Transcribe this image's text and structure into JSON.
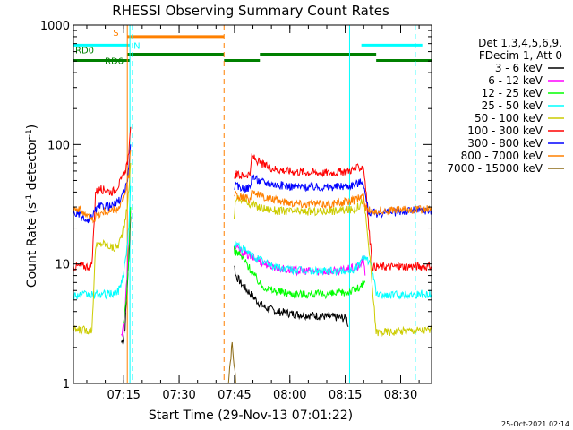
{
  "chart_data": {
    "type": "line",
    "title": "RHESSI Observing Summary Count Rates",
    "xlabel": "Start Time (29-Nov-13 07:01:22)",
    "ylabel_main": "Count Rate (s",
    "ylabel_sup1": "-1",
    "ylabel_mid": " detector",
    "ylabel_sup2": "-1",
    "ylabel_end": ")",
    "y_scale": "log",
    "ylim": [
      1,
      1000
    ],
    "xlim_minutes": [
      0,
      97
    ],
    "x_ticks": [
      {
        "label": "07:15",
        "min": 13.63
      },
      {
        "label": "07:30",
        "min": 28.63
      },
      {
        "label": "07:45",
        "min": 43.63
      },
      {
        "label": "08:00",
        "min": 58.63
      },
      {
        "label": "08:15",
        "min": 73.63
      },
      {
        "label": "08:30",
        "min": 88.63
      }
    ],
    "y_ticks": [
      {
        "label": "1",
        "value": 1
      },
      {
        "label": "10",
        "value": 10
      },
      {
        "label": "100",
        "value": 100
      },
      {
        "label": "1000",
        "value": 1000
      }
    ],
    "legend": {
      "placement": "right",
      "header": [
        "Det 1,3,4,5,6,9,",
        "FDecim 1, Att 0"
      ],
      "entries": [
        {
          "label": "3 - 6 keV",
          "color": "#000000"
        },
        {
          "label": "6 - 12 keV",
          "color": "#ff00ff"
        },
        {
          "label": "12 - 25 keV",
          "color": "#00ff00"
        },
        {
          "label": "25 - 50 keV",
          "color": "#00ffff"
        },
        {
          "label": "50 - 100 keV",
          "color": "#cccc00"
        },
        {
          "label": "100 - 300 keV",
          "color": "#ff0000"
        },
        {
          "label": "300 - 800 keV",
          "color": "#0000ff"
        },
        {
          "label": "800 - 7000 keV",
          "color": "#ff8000"
        },
        {
          "label": "7000 - 15000 keV",
          "color": "#8b6914"
        }
      ]
    },
    "series": [
      {
        "name": "3 - 6 keV",
        "color": "#000000",
        "segments": [
          [
            [
              13,
              2.2
            ],
            [
              13.5,
              2.4
            ],
            [
              14,
              3
            ],
            [
              14.5,
              6
            ],
            [
              15,
              11
            ],
            [
              15.5,
              25
            ]
          ],
          [
            [
              43.5,
              10
            ],
            [
              44,
              8
            ],
            [
              46,
              6.5
            ],
            [
              48,
              5.6
            ],
            [
              50,
              4.8
            ],
            [
              52,
              4.3
            ],
            [
              55,
              4.0
            ],
            [
              60,
              3.8
            ],
            [
              65,
              3.7
            ],
            [
              70,
              3.6
            ],
            [
              74,
              3.5
            ],
            [
              74.5,
              3.0
            ]
          ]
        ]
      },
      {
        "name": "6 - 12 keV",
        "color": "#ff00ff",
        "segments": [
          [
            [
              13,
              2.5
            ],
            [
              14,
              4
            ],
            [
              14.5,
              8
            ],
            [
              15,
              14
            ],
            [
              15.5,
              28
            ]
          ],
          [
            [
              43.5,
              14
            ],
            [
              45,
              13
            ],
            [
              48,
              11.5
            ],
            [
              52,
              10
            ],
            [
              56,
              9.2
            ],
            [
              60,
              8.8
            ],
            [
              66,
              8.7
            ],
            [
              72,
              8.7
            ],
            [
              77.5,
              9.5
            ],
            [
              78.5,
              11
            ],
            [
              79,
              8
            ]
          ]
        ]
      },
      {
        "name": "12 - 25 keV",
        "color": "#00ff00",
        "segments": [
          [
            [
              13.5,
              3
            ],
            [
              14.5,
              6
            ],
            [
              15,
              12
            ],
            [
              15.5,
              30
            ]
          ],
          [
            [
              43.5,
              13
            ],
            [
              45,
              12
            ],
            [
              47,
              10
            ],
            [
              49,
              8
            ],
            [
              51,
              6.6
            ],
            [
              54,
              6.0
            ],
            [
              58,
              5.7
            ],
            [
              62,
              5.6
            ],
            [
              66,
              5.6
            ],
            [
              70,
              5.6
            ],
            [
              74,
              5.8
            ],
            [
              77.5,
              6.3
            ],
            [
              79,
              7
            ]
          ]
        ]
      },
      {
        "name": "25 - 50 keV",
        "color": "#00ffff",
        "segments": [
          [
            [
              0,
              5.5
            ],
            [
              5,
              5.5
            ],
            [
              10,
              5.6
            ],
            [
              12,
              5.8
            ],
            [
              13,
              7
            ],
            [
              14,
              10
            ],
            [
              15,
              20
            ],
            [
              15.5,
              45
            ]
          ],
          [
            [
              43.5,
              15
            ],
            [
              45,
              14
            ],
            [
              48,
              12
            ],
            [
              52,
              10.2
            ],
            [
              56,
              9.2
            ],
            [
              60,
              8.9
            ],
            [
              66,
              8.7
            ],
            [
              72,
              8.7
            ],
            [
              76,
              9
            ],
            [
              77.5,
              10
            ],
            [
              79,
              12
            ],
            [
              81,
              9
            ],
            [
              82,
              5.5
            ],
            [
              86,
              5.5
            ],
            [
              92,
              5.6
            ],
            [
              97,
              5.6
            ]
          ]
        ]
      },
      {
        "name": "50 - 100 keV",
        "color": "#cccc00",
        "segments": [
          [
            [
              0,
              2.8
            ],
            [
              5,
              2.8
            ],
            [
              6,
              14
            ],
            [
              8,
              15
            ],
            [
              10,
              14
            ],
            [
              11,
              13.5
            ],
            [
              12,
              14
            ],
            [
              13,
              17
            ],
            [
              14,
              22
            ],
            [
              15,
              40
            ],
            [
              15.5,
              70
            ]
          ],
          [
            [
              43.5,
              25
            ],
            [
              44,
              36
            ],
            [
              46,
              34
            ],
            [
              48,
              32
            ],
            [
              50,
              30
            ],
            [
              52,
              29
            ],
            [
              55,
              28
            ],
            [
              60,
              27.5
            ],
            [
              66,
              27.5
            ],
            [
              72,
              28
            ],
            [
              76,
              28.5
            ],
            [
              77.5,
              31
            ],
            [
              78.5,
              35
            ],
            [
              79,
              28
            ],
            [
              80,
              14
            ],
            [
              82,
              2.7
            ],
            [
              86,
              2.7
            ],
            [
              92,
              2.8
            ],
            [
              97,
              2.8
            ]
          ]
        ]
      },
      {
        "name": "100 - 300 keV",
        "color": "#ff0000",
        "segments": [
          [
            [
              0,
              9.5
            ],
            [
              2,
              9.6
            ],
            [
              5,
              9.5
            ],
            [
              6,
              40
            ],
            [
              7,
              42
            ],
            [
              9,
              42
            ],
            [
              10,
              40
            ],
            [
              11,
              41
            ],
            [
              12,
              45
            ],
            [
              13,
              50
            ],
            [
              14,
              60
            ],
            [
              15,
              80
            ],
            [
              15.5,
              140
            ]
          ],
          [
            [
              43.5,
              55
            ],
            [
              44,
              56
            ],
            [
              45,
              55
            ],
            [
              46,
              55
            ],
            [
              47,
              56
            ],
            [
              48,
              58
            ],
            [
              48.3,
              80
            ],
            [
              50,
              72
            ],
            [
              52,
              66
            ],
            [
              55,
              62
            ],
            [
              58,
              60
            ],
            [
              62,
              59
            ],
            [
              66,
              58
            ],
            [
              70,
              58
            ],
            [
              74,
              60
            ],
            [
              76,
              62
            ],
            [
              77.5,
              64
            ],
            [
              78.5,
              66
            ],
            [
              79,
              50
            ],
            [
              80,
              20
            ],
            [
              81,
              9.5
            ],
            [
              86,
              9.5
            ],
            [
              92,
              9.6
            ],
            [
              97,
              9.5
            ]
          ]
        ]
      },
      {
        "name": "300 - 800 keV",
        "color": "#0000ff",
        "segments": [
          [
            [
              0,
              27
            ],
            [
              2,
              25
            ],
            [
              4,
              22
            ],
            [
              6,
              28
            ],
            [
              7,
              30
            ],
            [
              9,
              31
            ],
            [
              10,
              30
            ],
            [
              11,
              31
            ],
            [
              12,
              33
            ],
            [
              13,
              36
            ],
            [
              14,
              42
            ],
            [
              15,
              60
            ],
            [
              15.5,
              100
            ]
          ],
          [
            [
              43.5,
              45
            ],
            [
              45,
              44
            ],
            [
              47,
              43
            ],
            [
              48,
              44
            ],
            [
              48.3,
              55
            ],
            [
              50,
              50
            ],
            [
              52,
              48
            ],
            [
              55,
              46
            ],
            [
              58,
              45
            ],
            [
              62,
              44
            ],
            [
              66,
              44
            ],
            [
              70,
              44
            ],
            [
              74,
              45
            ],
            [
              76,
              46
            ],
            [
              77.5,
              48
            ],
            [
              78.5,
              50
            ],
            [
              79,
              38
            ],
            [
              80,
              27
            ],
            [
              82,
              26.5
            ],
            [
              86,
              27
            ],
            [
              92,
              28
            ],
            [
              97,
              28
            ]
          ]
        ]
      },
      {
        "name": "800 - 7000 keV",
        "color": "#ff8000",
        "segments": [
          [
            [
              0,
              30
            ],
            [
              3,
              27
            ],
            [
              5,
              23
            ],
            [
              6,
              25
            ],
            [
              8,
              27
            ],
            [
              10,
              27.5
            ],
            [
              12,
              29
            ],
            [
              13,
              32
            ],
            [
              14,
              38
            ],
            [
              15,
              55
            ],
            [
              15.5,
              90
            ]
          ],
          [
            [
              43.5,
              40
            ],
            [
              44,
              38
            ],
            [
              46,
              36
            ],
            [
              48,
              35
            ],
            [
              48.3,
              42
            ],
            [
              50,
              38
            ],
            [
              52,
              36
            ],
            [
              55,
              34
            ],
            [
              58,
              33
            ],
            [
              62,
              32
            ],
            [
              66,
              32
            ],
            [
              70,
              32
            ],
            [
              74,
              33
            ],
            [
              76,
              34
            ],
            [
              77.5,
              36
            ],
            [
              78.5,
              38
            ],
            [
              79,
              30
            ],
            [
              80,
              28
            ],
            [
              84,
              28
            ],
            [
              90,
              28.5
            ],
            [
              97,
              29
            ]
          ]
        ]
      },
      {
        "name": "7000 - 15000 keV",
        "color": "#8b6914",
        "segments": [
          [
            [
              42,
              1.0
            ],
            [
              42.5,
              1.5
            ],
            [
              43,
              2.2
            ],
            [
              43.5,
              1.4
            ],
            [
              44,
              1.0
            ]
          ]
        ]
      }
    ],
    "state_bars": {
      "S": {
        "label": "S",
        "color": "#ff8000",
        "log_y": 800,
        "ranges": [
          [
            14.6,
            40.8
          ]
        ]
      },
      "N": {
        "label": "N",
        "color": "#00ffff",
        "log_y": 680,
        "ranges": [
          [
            0,
            15.3
          ],
          [
            78,
            94.5
          ]
        ]
      },
      "RD0": {
        "label": "RD0",
        "color": "#008000",
        "log_y": 570,
        "ranges": [
          [
            14.6,
            40.8
          ],
          [
            50.5,
            82
          ]
        ]
      },
      "RD6": {
        "label": "RD6",
        "color": "#008000",
        "log_y": 505,
        "ranges": [
          [
            0,
            15.3
          ],
          [
            40.8,
            50.5
          ],
          [
            82,
            97
          ]
        ]
      }
    },
    "vlines": [
      {
        "min": 15.3,
        "color": "#00ffff",
        "style": "solid"
      },
      {
        "min": 16.0,
        "color": "#00ffff",
        "style": "dashed"
      },
      {
        "min": 14.6,
        "color": "#ff8000",
        "style": "solid"
      },
      {
        "min": 40.8,
        "color": "#ff8000",
        "style": "dashed"
      },
      {
        "min": 74.8,
        "color": "#00ffff",
        "style": "solid"
      },
      {
        "min": 92.6,
        "color": "#00ffff",
        "style": "dashed"
      }
    ]
  },
  "footer_timestamp": "25-Oct-2021 02:14"
}
